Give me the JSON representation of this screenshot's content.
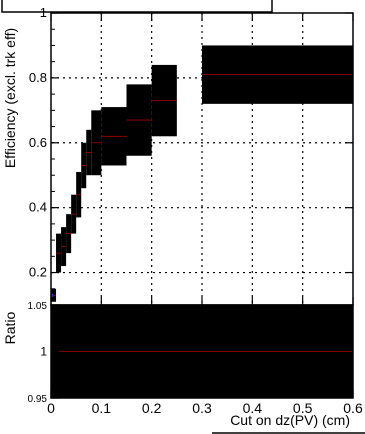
{
  "chart_data": [
    {
      "type": "scatter",
      "panel": "main",
      "ylabel": "Efficiency (excl. trk eff)",
      "xlim": [
        0,
        0.6
      ],
      "ylim": [
        0.1,
        1.0
      ],
      "grid": true,
      "xticks": [
        "0",
        "0.1",
        "0.2",
        "0.3",
        "0.4",
        "0.5",
        "0.6"
      ],
      "yticks": [
        "0.2",
        "0.4",
        "0.6",
        "0.8",
        "1"
      ],
      "series": [
        {
          "points": [
            {
              "x": 0.005,
              "y": 0.13,
              "xerr": 0.005,
              "yerr": 0.02
            },
            {
              "x": 0.015,
              "y": 0.26,
              "xerr": 0.005,
              "yerr": 0.06
            },
            {
              "x": 0.025,
              "y": 0.28,
              "xerr": 0.005,
              "yerr": 0.06
            },
            {
              "x": 0.035,
              "y": 0.32,
              "xerr": 0.005,
              "yerr": 0.06
            },
            {
              "x": 0.045,
              "y": 0.38,
              "xerr": 0.005,
              "yerr": 0.06
            },
            {
              "x": 0.055,
              "y": 0.44,
              "xerr": 0.005,
              "yerr": 0.07
            },
            {
              "x": 0.065,
              "y": 0.53,
              "xerr": 0.005,
              "yerr": 0.07
            },
            {
              "x": 0.075,
              "y": 0.57,
              "xerr": 0.005,
              "yerr": 0.07
            },
            {
              "x": 0.09,
              "y": 0.6,
              "xerr": 0.01,
              "yerr": 0.1
            },
            {
              "x": 0.125,
              "y": 0.62,
              "xerr": 0.025,
              "yerr": 0.09
            },
            {
              "x": 0.175,
              "y": 0.67,
              "xerr": 0.025,
              "yerr": 0.11
            },
            {
              "x": 0.225,
              "y": 0.73,
              "xerr": 0.025,
              "yerr": 0.11
            },
            {
              "x": 0.45,
              "y": 0.81,
              "xerr": 0.15,
              "yerr": 0.09
            }
          ]
        }
      ]
    },
    {
      "type": "scatter",
      "panel": "ratio",
      "xlabel": "Cut on dz(PV) (cm)",
      "ylabel": "Ratio",
      "xlim": [
        0,
        0.6
      ],
      "ylim": [
        0.95,
        1.05
      ],
      "grid": true,
      "xticks": [
        "0",
        "0.1",
        "0.2",
        "0.3",
        "0.4",
        "0.5",
        "0.6"
      ],
      "yticks": [
        "0.95",
        "1",
        "1.05"
      ],
      "series": [
        {
          "points": [
            {
              "x": 0.3,
              "y": 1.0,
              "xerr": 0.3,
              "yerr": 0.05
            }
          ]
        }
      ]
    }
  ]
}
